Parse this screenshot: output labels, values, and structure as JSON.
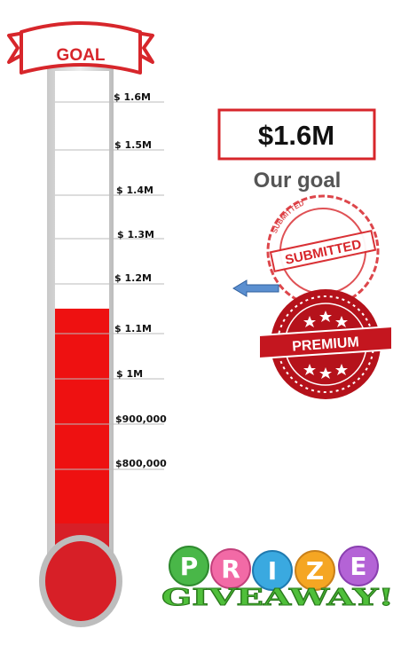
{
  "banner": {
    "label": "GOAL"
  },
  "thermometer": {
    "scale": [
      {
        "label": "$ 1.6M",
        "value": 1600000
      },
      {
        "label": "$ 1.5M",
        "value": 1500000
      },
      {
        "label": "$ 1.4M",
        "value": 1400000
      },
      {
        "label": "$ 1.3M",
        "value": 1300000
      },
      {
        "label": "$ 1.2M",
        "value": 1200000
      },
      {
        "label": "$ 1.1M",
        "value": 1100000
      },
      {
        "label": "$ 1M",
        "value": 1000000
      },
      {
        "label": "$900,000",
        "value": 900000
      },
      {
        "label": "$800,000",
        "value": 800000
      }
    ],
    "fill_value": 1150000,
    "fill_color": "#ee1111",
    "bulb_color": "#d71f27"
  },
  "goal_box": {
    "amount": "$1.6M",
    "caption": "Our goal"
  },
  "stamps": {
    "submitted": "SUBMITTED",
    "premium": "PREMIUM"
  },
  "prize": {
    "word": "PRIZE",
    "sub": "GIVEAWAY!"
  },
  "colors": {
    "accent_red": "#d7262b",
    "arrow_blue": "#5b8fd0"
  }
}
